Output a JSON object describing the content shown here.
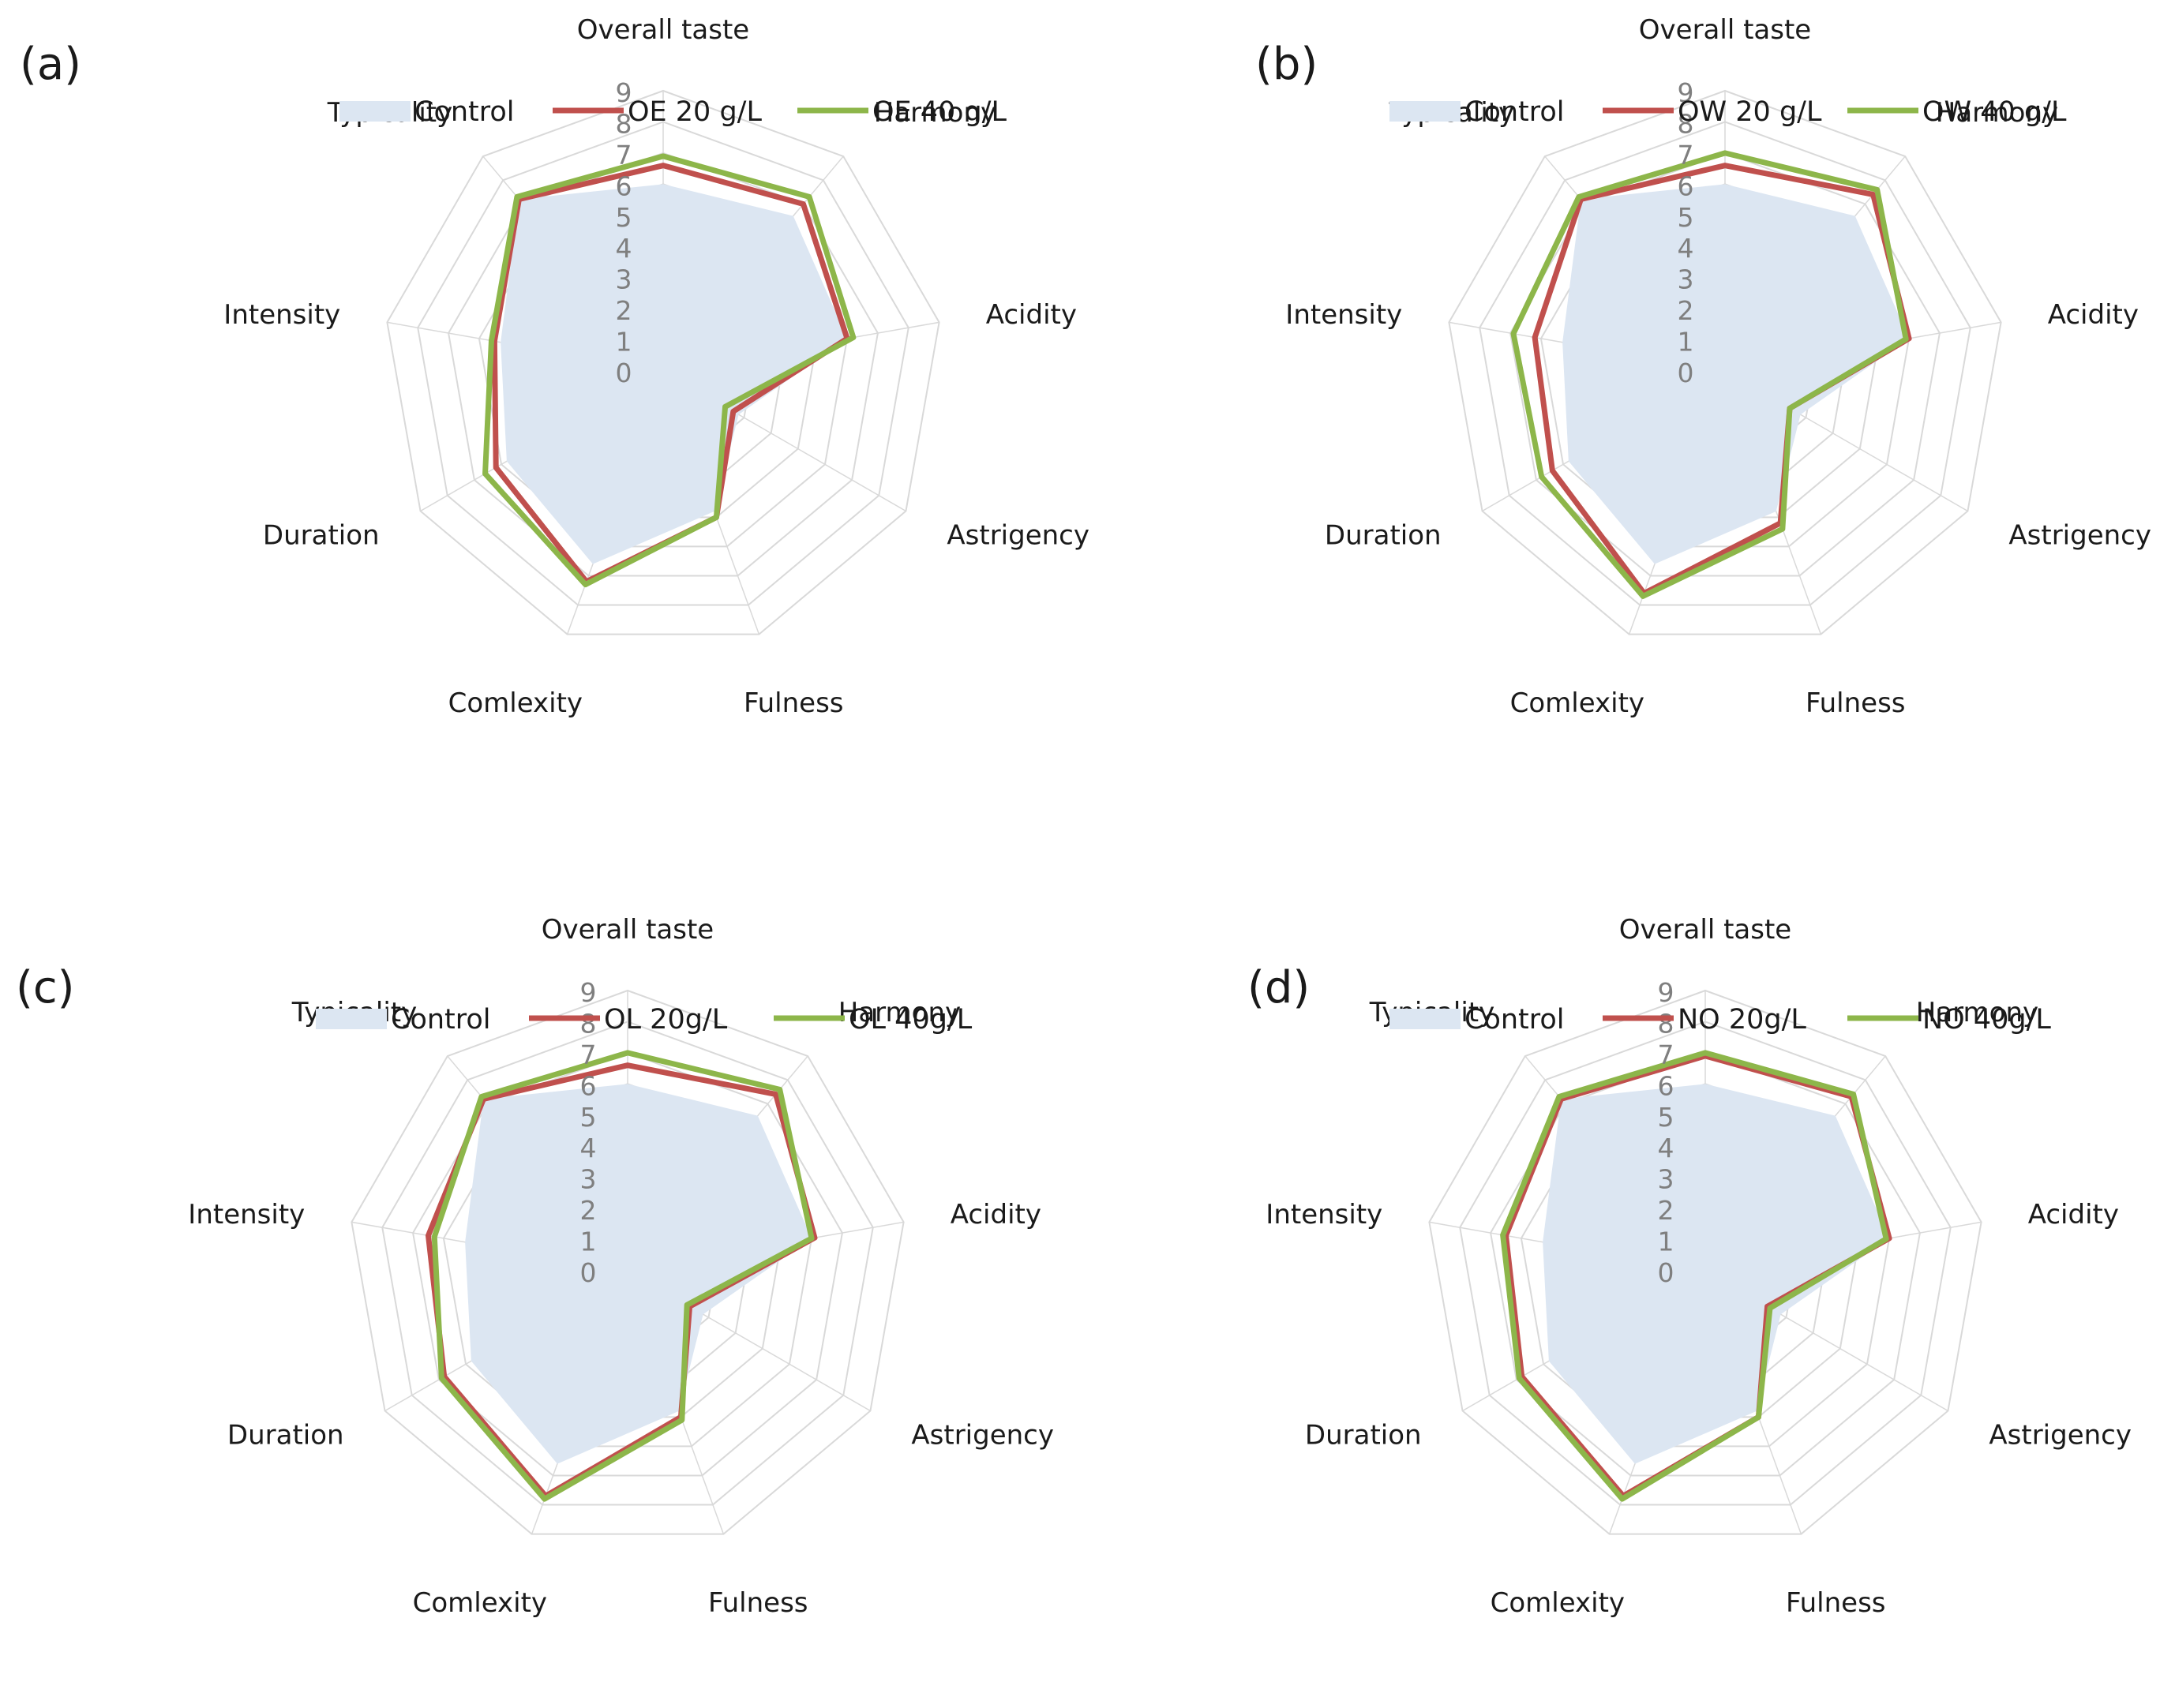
{
  "figure": {
    "colors": {
      "control_fill": "#dce6f2",
      "series1": "#c0504d",
      "series2": "#8db64a",
      "grid": "#d9d9d9",
      "tick": "#7f7f7f",
      "label": "#1a1a1a"
    },
    "scale_ticks": [
      "0",
      "1",
      "2",
      "3",
      "4",
      "5",
      "6",
      "7",
      "8",
      "9"
    ]
  },
  "chart_data": [
    {
      "type": "radar",
      "panel": "(a)",
      "axes": [
        "Overall taste",
        "Harmony",
        "Acidity",
        "Astrigency",
        "Fulness",
        "Comlexity",
        "Duration",
        "Intensity",
        "Typicality"
      ],
      "rlim": [
        0,
        9
      ],
      "series": [
        {
          "name": "Control",
          "style": "area",
          "values": [
            6.0,
            6.5,
            6.0,
            2.8,
            4.8,
            6.6,
            5.8,
            5.3,
            7.2
          ]
        },
        {
          "name": "OE 20 g/L",
          "style": "line",
          "values": [
            6.6,
            7.0,
            6.0,
            2.6,
            5.0,
            7.2,
            6.2,
            5.5,
            7.2
          ]
        },
        {
          "name": "OE 40 g/L",
          "style": "line",
          "values": [
            6.9,
            7.3,
            6.2,
            2.3,
            5.0,
            7.3,
            6.6,
            5.6,
            7.3
          ]
        }
      ]
    },
    {
      "type": "radar",
      "panel": "(b)",
      "axes": [
        "Overall taste",
        "Harmony",
        "Acidity",
        "Astrigency",
        "Fulness",
        "Comlexity",
        "Duration",
        "Intensity",
        "Typicality"
      ],
      "rlim": [
        0,
        9
      ],
      "series": [
        {
          "name": "Control",
          "style": "area",
          "values": [
            6.0,
            6.5,
            6.0,
            2.8,
            4.8,
            6.6,
            5.8,
            5.3,
            7.2
          ]
        },
        {
          "name": "OW 20 g/L",
          "style": "line",
          "values": [
            6.6,
            7.4,
            6.0,
            2.4,
            5.2,
            7.6,
            6.4,
            6.2,
            7.2
          ]
        },
        {
          "name": "OW 40 g/L",
          "style": "line",
          "values": [
            7.0,
            7.6,
            5.9,
            2.4,
            5.4,
            7.7,
            6.8,
            6.9,
            7.3
          ]
        }
      ]
    },
    {
      "type": "radar",
      "panel": "(c)",
      "axes": [
        "Overall taste",
        "Harmony",
        "Acidity",
        "Astrigency",
        "Fulness",
        "Comlexity",
        "Duration",
        "Intensity",
        "Typicality"
      ],
      "rlim": [
        0,
        9
      ],
      "series": [
        {
          "name": "Control",
          "style": "area",
          "values": [
            6.0,
            6.5,
            6.0,
            2.8,
            4.8,
            6.6,
            5.8,
            5.3,
            7.2
          ]
        },
        {
          "name": "OL 20g/L",
          "style": "line",
          "values": [
            6.6,
            7.4,
            6.1,
            2.3,
            5.0,
            7.7,
            6.8,
            6.5,
            7.2
          ]
        },
        {
          "name": "OL 40g/L",
          "style": "line",
          "values": [
            7.0,
            7.6,
            6.0,
            2.2,
            5.1,
            7.8,
            6.9,
            6.3,
            7.3
          ]
        }
      ]
    },
    {
      "type": "radar",
      "panel": "(d)",
      "axes": [
        "Overall taste",
        "Harmony",
        "Acidity",
        "Astrigency",
        "Fulness",
        "Comlexity",
        "Duration",
        "Intensity",
        "Typicality"
      ],
      "rlim": [
        0,
        9
      ],
      "series": [
        {
          "name": "Control",
          "style": "area",
          "values": [
            6.0,
            6.5,
            6.0,
            2.8,
            4.8,
            6.6,
            5.8,
            5.3,
            7.2
          ]
        },
        {
          "name": "NO 20g/L",
          "style": "line",
          "values": [
            6.9,
            7.3,
            6.0,
            2.3,
            5.0,
            7.7,
            6.8,
            6.5,
            7.2
          ]
        },
        {
          "name": "NO 40g/L",
          "style": "line",
          "values": [
            7.0,
            7.4,
            5.9,
            2.4,
            5.0,
            7.8,
            6.9,
            6.6,
            7.3
          ]
        }
      ]
    }
  ]
}
